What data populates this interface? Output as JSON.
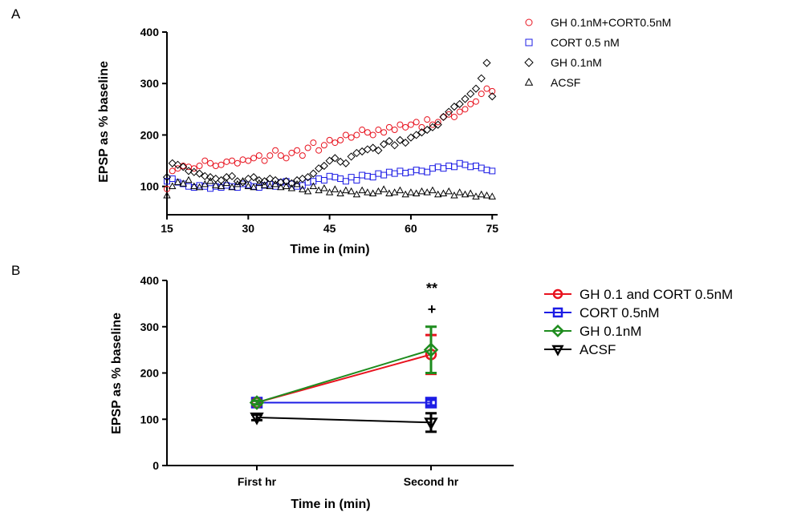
{
  "panels": {
    "a_label": "A",
    "b_label": "B"
  },
  "chart_data": [
    {
      "type": "scatter",
      "xlabel": "Time in (min)",
      "ylabel": "EPSP as % baseline",
      "xlim": [
        15,
        76
      ],
      "ylim": [
        45,
        400
      ],
      "xticks": [
        15,
        30,
        45,
        60,
        75
      ],
      "yticks": [
        100,
        200,
        300,
        400
      ],
      "legend_position": "top-right",
      "series": [
        {
          "name": "GH 0.1nM+CORT0.5nM",
          "marker": "circle",
          "color": "#e8131f",
          "x": [
            15,
            16,
            17,
            18,
            19,
            20,
            21,
            22,
            23,
            24,
            25,
            26,
            27,
            28,
            29,
            30,
            31,
            32,
            33,
            34,
            35,
            36,
            37,
            38,
            39,
            40,
            41,
            42,
            43,
            44,
            45,
            46,
            47,
            48,
            49,
            50,
            51,
            52,
            53,
            54,
            55,
            56,
            57,
            58,
            59,
            60,
            61,
            62,
            63,
            64,
            65,
            66,
            67,
            68,
            69,
            70,
            71,
            72,
            73,
            74,
            75
          ],
          "y": [
            95,
            130,
            135,
            140,
            138,
            135,
            140,
            150,
            145,
            140,
            142,
            148,
            150,
            145,
            152,
            150,
            155,
            160,
            150,
            160,
            170,
            160,
            155,
            165,
            170,
            160,
            175,
            185,
            170,
            180,
            190,
            185,
            190,
            200,
            195,
            200,
            210,
            205,
            200,
            210,
            205,
            215,
            210,
            220,
            215,
            220,
            225,
            215,
            230,
            220,
            225,
            235,
            240,
            235,
            245,
            250,
            260,
            265,
            280,
            290,
            285
          ]
        },
        {
          "name": "CORT 0.5 nM",
          "marker": "square",
          "color": "#1c1ce5",
          "x": [
            15,
            16,
            17,
            18,
            19,
            20,
            21,
            22,
            23,
            24,
            25,
            26,
            27,
            28,
            29,
            30,
            31,
            32,
            33,
            34,
            35,
            36,
            37,
            38,
            39,
            40,
            41,
            42,
            43,
            44,
            45,
            46,
            47,
            48,
            49,
            50,
            51,
            52,
            53,
            54,
            55,
            56,
            57,
            58,
            59,
            60,
            61,
            62,
            63,
            64,
            65,
            66,
            67,
            68,
            69,
            70,
            71,
            72,
            73,
            74,
            75
          ],
          "y": [
            110,
            115,
            108,
            105,
            100,
            98,
            102,
            100,
            96,
            100,
            98,
            102,
            100,
            98,
            105,
            103,
            100,
            98,
            102,
            104,
            100,
            108,
            110,
            105,
            100,
            102,
            108,
            110,
            115,
            112,
            120,
            118,
            115,
            110,
            118,
            112,
            122,
            120,
            118,
            125,
            122,
            128,
            125,
            130,
            126,
            128,
            132,
            130,
            128,
            135,
            138,
            135,
            140,
            138,
            145,
            142,
            138,
            140,
            136,
            132,
            130
          ]
        },
        {
          "name": "GH 0.1nM",
          "marker": "diamond",
          "color": "#000000",
          "x": [
            15,
            16,
            17,
            18,
            19,
            20,
            21,
            22,
            23,
            24,
            25,
            26,
            27,
            28,
            29,
            30,
            31,
            32,
            33,
            34,
            35,
            36,
            37,
            38,
            39,
            40,
            41,
            42,
            43,
            44,
            45,
            46,
            47,
            48,
            49,
            50,
            51,
            52,
            53,
            54,
            55,
            56,
            57,
            58,
            59,
            60,
            61,
            62,
            63,
            64,
            65,
            66,
            67,
            68,
            69,
            70,
            71,
            72,
            73,
            74,
            75
          ],
          "y": [
            118,
            145,
            142,
            138,
            130,
            128,
            125,
            120,
            118,
            115,
            112,
            118,
            120,
            110,
            108,
            115,
            118,
            112,
            110,
            115,
            112,
            108,
            110,
            106,
            112,
            115,
            118,
            125,
            135,
            140,
            150,
            155,
            148,
            145,
            158,
            165,
            168,
            172,
            175,
            170,
            182,
            188,
            180,
            190,
            185,
            195,
            200,
            205,
            210,
            215,
            220,
            235,
            245,
            255,
            260,
            270,
            280,
            290,
            310,
            340,
            275
          ]
        },
        {
          "name": "ACSF",
          "marker": "triangle",
          "color": "#000000",
          "x": [
            15,
            16,
            17,
            18,
            19,
            20,
            21,
            22,
            23,
            24,
            25,
            26,
            27,
            28,
            29,
            30,
            31,
            32,
            33,
            34,
            35,
            36,
            37,
            38,
            39,
            40,
            41,
            42,
            43,
            44,
            45,
            46,
            47,
            48,
            49,
            50,
            51,
            52,
            53,
            54,
            55,
            56,
            57,
            58,
            59,
            60,
            61,
            62,
            63,
            64,
            65,
            66,
            67,
            68,
            69,
            70,
            71,
            72,
            73,
            74,
            75
          ],
          "y": [
            82,
            100,
            108,
            105,
            112,
            100,
            98,
            104,
            110,
            102,
            100,
            106,
            98,
            104,
            110,
            100,
            98,
            106,
            102,
            100,
            104,
            98,
            100,
            96,
            104,
            94,
            90,
            100,
            92,
            96,
            88,
            94,
            86,
            92,
            90,
            84,
            92,
            88,
            86,
            90,
            94,
            86,
            88,
            92,
            84,
            88,
            86,
            90,
            88,
            92,
            84,
            86,
            90,
            82,
            88,
            84,
            86,
            80,
            84,
            82,
            80
          ]
        }
      ]
    },
    {
      "type": "line",
      "xlabel": "Time in (min)",
      "ylabel": "EPSP as % baseline",
      "categories": [
        "First hr",
        "Second hr"
      ],
      "ylim": [
        0,
        400
      ],
      "yticks": [
        0,
        100,
        200,
        300,
        400
      ],
      "legend_position": "right",
      "annotations": [
        "**",
        "+"
      ],
      "series": [
        {
          "name": "GH 0.1 and CORT 0.5nM",
          "marker": "circle",
          "color": "#e8131f",
          "values": [
            136,
            240
          ],
          "errors": [
            4,
            42
          ]
        },
        {
          "name": "CORT 0.5nM",
          "marker": "square",
          "color": "#1c1ce5",
          "values": [
            136,
            136
          ],
          "errors": [
            4,
            6
          ]
        },
        {
          "name": "GH 0.1nM",
          "marker": "diamond",
          "color": "#1e8c1e",
          "values": [
            136,
            250
          ],
          "errors": [
            4,
            50
          ]
        },
        {
          "name": "ACSF",
          "marker": "triangle-down",
          "color": "#000000",
          "values": [
            104,
            93
          ],
          "errors": [
            6,
            20
          ]
        }
      ]
    }
  ]
}
